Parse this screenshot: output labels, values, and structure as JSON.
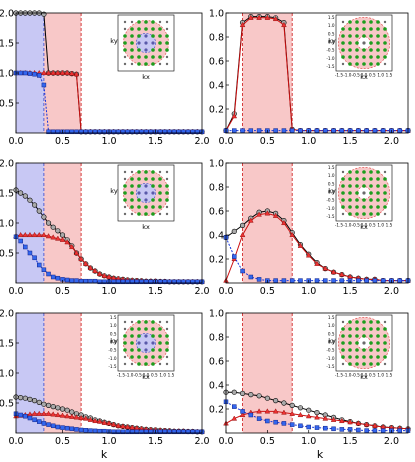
{
  "figure": {
    "xlabel_left": "k",
    "xlabel_right": "k"
  },
  "colors": {
    "blue_band": "#c8c8f4",
    "red_band": "#f8c8c8",
    "series_total": "#000000",
    "series_red": "#cc1111",
    "series_blue": "#1133dd",
    "inset_points": "#6a6a6a",
    "inset_ring_green": "#1e9e1e"
  },
  "chart_data": [
    {
      "type": "line",
      "panel": "left-top",
      "xlim": [
        0,
        2.0
      ],
      "ylim": [
        0,
        2.0
      ],
      "xticks": [
        "0.0",
        "0.5",
        "1.0",
        "1.5",
        "2.0"
      ],
      "yticks": [
        "0.5",
        "1.0",
        "1.5",
        "2.0"
      ],
      "xlabel": "",
      "ylabel": "",
      "bands": {
        "blue": [
          0,
          0.3
        ],
        "red": [
          0.3,
          0.7
        ]
      },
      "x": [
        0,
        0.05,
        0.1,
        0.15,
        0.2,
        0.25,
        0.3,
        0.35,
        0.4,
        0.45,
        0.5,
        0.55,
        0.6,
        0.65,
        0.7,
        0.75,
        0.8,
        0.85,
        0.9,
        0.95,
        1.0,
        1.05,
        1.1,
        1.15,
        1.2,
        1.25,
        1.3,
        1.35,
        1.4,
        1.45,
        1.5,
        1.55,
        1.6,
        1.65,
        1.7,
        1.75,
        1.8,
        1.85,
        1.9,
        1.95,
        2.0
      ],
      "series": [
        {
          "values": [
            2.0,
            2.0,
            2.0,
            2.0,
            2.0,
            2.0,
            1.98,
            1.0,
            1.0,
            1.0,
            1.0,
            1.0,
            0.99,
            0.98,
            0.02,
            0.02,
            0.02,
            0.02,
            0.02,
            0.02,
            0.02,
            0.02,
            0.02,
            0.02,
            0.02,
            0.02,
            0.02,
            0.02,
            0.02,
            0.02,
            0.02,
            0.02,
            0.02,
            0.02,
            0.02,
            0.02,
            0.02,
            0.02,
            0.02,
            0.02,
            0.02
          ]
        },
        {
          "values": [
            1.0,
            1.0,
            1.0,
            1.0,
            1.0,
            1.0,
            1.0,
            1.0,
            1.0,
            1.0,
            1.0,
            1.0,
            0.99,
            0.98,
            0.02,
            0.02,
            0.02,
            0.02,
            0.02,
            0.02,
            0.02,
            0.02,
            0.02,
            0.02,
            0.02,
            0.02,
            0.02,
            0.02,
            0.02,
            0.02,
            0.02,
            0.02,
            0.02,
            0.02,
            0.02,
            0.02,
            0.02,
            0.02,
            0.02,
            0.02,
            0.02
          ]
        },
        {
          "values": [
            1.0,
            1.0,
            1.0,
            0.99,
            0.98,
            0.96,
            0.8,
            0.02,
            0.02,
            0.02,
            0.02,
            0.02,
            0.02,
            0.02,
            0.02,
            0.02,
            0.02,
            0.02,
            0.02,
            0.02,
            0.02,
            0.02,
            0.02,
            0.02,
            0.02,
            0.02,
            0.02,
            0.02,
            0.02,
            0.02,
            0.02,
            0.02,
            0.02,
            0.02,
            0.02,
            0.02,
            0.02,
            0.02,
            0.02,
            0.02,
            0.02
          ]
        }
      ],
      "inset": {
        "xlabel": "kx",
        "ylabel": "ky",
        "xticks": [],
        "yticks": [],
        "colored_ticks": false,
        "rings": [
          0.3,
          0.7
        ]
      }
    },
    {
      "type": "line",
      "panel": "right-top",
      "xlim": [
        0,
        2.2
      ],
      "ylim": [
        0,
        1.0
      ],
      "xticks": [
        "0.0",
        "0.5",
        "1.0",
        "1.5",
        "2.0"
      ],
      "yticks": [
        "0.2",
        "0.4",
        "0.6",
        "0.8",
        "1.0"
      ],
      "xlabel": "",
      "ylabel": "",
      "bands": {
        "red": [
          0.2,
          0.8
        ]
      },
      "x": [
        0,
        0.1,
        0.2,
        0.3,
        0.4,
        0.5,
        0.6,
        0.7,
        0.8,
        0.9,
        1.0,
        1.1,
        1.2,
        1.3,
        1.4,
        1.5,
        1.6,
        1.7,
        1.8,
        1.9,
        2.0,
        2.1,
        2.2
      ],
      "series": [
        {
          "values": [
            0.02,
            0.16,
            0.92,
            0.97,
            0.97,
            0.97,
            0.96,
            0.92,
            0.03,
            0.02,
            0.02,
            0.02,
            0.02,
            0.02,
            0.02,
            0.02,
            0.02,
            0.02,
            0.02,
            0.02,
            0.02,
            0.02,
            0.02
          ]
        },
        {
          "values": [
            0.02,
            0.14,
            0.9,
            0.96,
            0.96,
            0.96,
            0.95,
            0.9,
            0.03,
            0.02,
            0.02,
            0.02,
            0.02,
            0.02,
            0.02,
            0.02,
            0.02,
            0.02,
            0.02,
            0.02,
            0.02,
            0.02,
            0.02
          ]
        },
        {
          "values": [
            0.02,
            0.02,
            0.02,
            0.02,
            0.02,
            0.02,
            0.02,
            0.02,
            0.02,
            0.02,
            0.02,
            0.02,
            0.02,
            0.02,
            0.02,
            0.02,
            0.02,
            0.02,
            0.02,
            0.02,
            0.02,
            0.02,
            0.02
          ]
        }
      ],
      "inset": {
        "xlabel": "kx",
        "ylabel": "ky",
        "xticks": [
          "-1.5",
          "-1.0",
          "-0.5",
          "0.0",
          "0.5",
          "1.0",
          "1.5"
        ],
        "yticks": [
          "1.5",
          "1.0",
          "0.5",
          "0.0",
          "-0.5",
          "-1.0",
          "-1.5"
        ],
        "colored_ticks": false,
        "rings": [
          0.2,
          0.8
        ]
      }
    },
    {
      "type": "line",
      "panel": "left-middle",
      "xlim": [
        0,
        2.0
      ],
      "ylim": [
        0,
        2.0
      ],
      "xticks": [
        "0.0",
        "0.5",
        "1.0",
        "1.5",
        "2.0"
      ],
      "yticks": [
        "0.5",
        "1.0",
        "1.5",
        "2.0"
      ],
      "xlabel": "",
      "ylabel": "",
      "bands": {
        "blue": [
          0,
          0.3
        ],
        "red": [
          0.3,
          0.7
        ]
      },
      "x": [
        0,
        0.05,
        0.1,
        0.15,
        0.2,
        0.25,
        0.3,
        0.35,
        0.4,
        0.45,
        0.5,
        0.55,
        0.6,
        0.65,
        0.7,
        0.75,
        0.8,
        0.85,
        0.9,
        0.95,
        1.0,
        1.05,
        1.1,
        1.15,
        1.2,
        1.25,
        1.3,
        1.35,
        1.4,
        1.45,
        1.5,
        1.55,
        1.6,
        1.65,
        1.7,
        1.75,
        1.8,
        1.85,
        1.9,
        1.95,
        2.0
      ],
      "series": [
        {
          "values": [
            1.55,
            1.5,
            1.45,
            1.38,
            1.3,
            1.2,
            1.1,
            1.0,
            0.93,
            0.87,
            0.8,
            0.72,
            0.62,
            0.5,
            0.4,
            0.32,
            0.25,
            0.2,
            0.15,
            0.12,
            0.1,
            0.08,
            0.07,
            0.06,
            0.05,
            0.045,
            0.04,
            0.035,
            0.03,
            0.03,
            0.03,
            0.025,
            0.025,
            0.02,
            0.02,
            0.02,
            0.02,
            0.02,
            0.02,
            0.02,
            0.02
          ]
        },
        {
          "values": [
            0.78,
            0.8,
            0.8,
            0.8,
            0.8,
            0.8,
            0.8,
            0.78,
            0.76,
            0.74,
            0.72,
            0.68,
            0.6,
            0.5,
            0.4,
            0.32,
            0.25,
            0.2,
            0.15,
            0.12,
            0.1,
            0.08,
            0.07,
            0.06,
            0.05,
            0.045,
            0.04,
            0.035,
            0.03,
            0.03,
            0.03,
            0.025,
            0.025,
            0.02,
            0.02,
            0.02,
            0.02,
            0.02,
            0.02,
            0.02,
            0.02
          ]
        },
        {
          "values": [
            0.77,
            0.7,
            0.6,
            0.5,
            0.42,
            0.3,
            0.22,
            0.15,
            0.1,
            0.08,
            0.06,
            0.05,
            0.04,
            0.04,
            0.03,
            0.03,
            0.03,
            0.03,
            0.02,
            0.02,
            0.02,
            0.02,
            0.02,
            0.02,
            0.02,
            0.02,
            0.02,
            0.02,
            0.02,
            0.02,
            0.02,
            0.02,
            0.02,
            0.02,
            0.02,
            0.02,
            0.02,
            0.02,
            0.02,
            0.02,
            0.02
          ]
        }
      ],
      "inset": {
        "xlabel": "kx",
        "ylabel": "ky",
        "xticks": [],
        "yticks": [],
        "colored_ticks": false,
        "rings": [
          0.3,
          0.7
        ]
      }
    },
    {
      "type": "line",
      "panel": "right-middle",
      "xlim": [
        0,
        2.2
      ],
      "ylim": [
        0,
        1.0
      ],
      "xticks": [
        "0.0",
        "0.5",
        "1.0",
        "1.5",
        "2.0"
      ],
      "yticks": [
        "0.2",
        "0.4",
        "0.6",
        "0.8",
        "1.0"
      ],
      "xlabel": "",
      "ylabel": "",
      "bands": {
        "red": [
          0.2,
          0.8
        ]
      },
      "x": [
        0,
        0.1,
        0.2,
        0.3,
        0.4,
        0.5,
        0.6,
        0.7,
        0.8,
        0.9,
        1.0,
        1.1,
        1.2,
        1.3,
        1.4,
        1.5,
        1.6,
        1.7,
        1.8,
        1.9,
        2.0,
        2.1,
        2.2
      ],
      "series": [
        {
          "values": [
            0.38,
            0.43,
            0.48,
            0.54,
            0.59,
            0.6,
            0.58,
            0.52,
            0.42,
            0.32,
            0.24,
            0.17,
            0.12,
            0.09,
            0.07,
            0.05,
            0.04,
            0.03,
            0.03,
            0.02,
            0.02,
            0.02,
            0.02
          ]
        },
        {
          "values": [
            0.02,
            0.2,
            0.4,
            0.52,
            0.57,
            0.58,
            0.56,
            0.5,
            0.4,
            0.31,
            0.23,
            0.16,
            0.12,
            0.09,
            0.07,
            0.05,
            0.04,
            0.03,
            0.03,
            0.02,
            0.02,
            0.02,
            0.02
          ]
        },
        {
          "values": [
            0.38,
            0.22,
            0.1,
            0.05,
            0.03,
            0.02,
            0.02,
            0.02,
            0.02,
            0.02,
            0.02,
            0.02,
            0.02,
            0.02,
            0.02,
            0.02,
            0.02,
            0.02,
            0.02,
            0.02,
            0.02,
            0.02,
            0.02
          ]
        }
      ],
      "inset": {
        "xlabel": "kx",
        "ylabel": "ky",
        "xticks": [
          "-1.5",
          "-1.0",
          "-0.5",
          "0.0",
          "0.5",
          "1.0",
          "1.5"
        ],
        "yticks": [
          "1.5",
          "1.0",
          "0.5",
          "0.0",
          "-0.5",
          "-1.0",
          "-1.5"
        ],
        "colored_ticks": false,
        "rings": [
          0.2,
          0.8
        ]
      }
    },
    {
      "type": "line",
      "panel": "left-bottom",
      "xlim": [
        0,
        2.0
      ],
      "ylim": [
        0,
        2.0
      ],
      "xticks": [
        "0.0",
        "0.5",
        "1.0",
        "1.5",
        "2.0"
      ],
      "yticks": [
        "0.5",
        "1.0",
        "1.5",
        "2.0"
      ],
      "xlabel": "k",
      "ylabel": "",
      "bands": {
        "blue": [
          0,
          0.3
        ],
        "red": [
          0.3,
          0.7
        ]
      },
      "x": [
        0,
        0.05,
        0.1,
        0.15,
        0.2,
        0.25,
        0.3,
        0.35,
        0.4,
        0.45,
        0.5,
        0.55,
        0.6,
        0.65,
        0.7,
        0.75,
        0.8,
        0.85,
        0.9,
        0.95,
        1.0,
        1.05,
        1.1,
        1.15,
        1.2,
        1.25,
        1.3,
        1.35,
        1.4,
        1.45,
        1.5,
        1.55,
        1.6,
        1.65,
        1.7,
        1.75,
        1.8,
        1.85,
        1.9,
        1.95,
        2.0
      ],
      "series": [
        {
          "values": [
            0.6,
            0.59,
            0.58,
            0.56,
            0.54,
            0.51,
            0.48,
            0.46,
            0.44,
            0.42,
            0.4,
            0.38,
            0.35,
            0.32,
            0.3,
            0.27,
            0.25,
            0.22,
            0.2,
            0.18,
            0.16,
            0.14,
            0.12,
            0.11,
            0.1,
            0.09,
            0.08,
            0.07,
            0.06,
            0.055,
            0.05,
            0.045,
            0.04,
            0.035,
            0.03,
            0.03,
            0.03,
            0.025,
            0.025,
            0.02,
            0.02
          ]
        },
        {
          "values": [
            0.28,
            0.29,
            0.3,
            0.31,
            0.32,
            0.32,
            0.32,
            0.32,
            0.31,
            0.3,
            0.29,
            0.28,
            0.27,
            0.26,
            0.25,
            0.24,
            0.22,
            0.2,
            0.19,
            0.17,
            0.16,
            0.14,
            0.12,
            0.11,
            0.1,
            0.09,
            0.08,
            0.07,
            0.06,
            0.055,
            0.05,
            0.045,
            0.04,
            0.035,
            0.03,
            0.03,
            0.03,
            0.025,
            0.025,
            0.02,
            0.02
          ]
        },
        {
          "values": [
            0.32,
            0.3,
            0.28,
            0.25,
            0.22,
            0.19,
            0.16,
            0.14,
            0.12,
            0.1,
            0.09,
            0.08,
            0.07,
            0.06,
            0.05,
            0.045,
            0.04,
            0.035,
            0.03,
            0.03,
            0.025,
            0.02,
            0.02,
            0.02,
            0.02,
            0.02,
            0.02,
            0.02,
            0.02,
            0.02,
            0.02,
            0.02,
            0.02,
            0.02,
            0.02,
            0.02,
            0.02,
            0.02,
            0.02,
            0.02,
            0.02
          ]
        }
      ],
      "inset": {
        "xlabel": "kx",
        "ylabel": "ky",
        "xticks": [
          "-1.5",
          "-1.0",
          "-0.5",
          "0.0",
          "0.5",
          "1.0",
          "1.5"
        ],
        "yticks": [
          "1.5",
          "1.0",
          "0.5",
          "0.0",
          "-0.5",
          "-1.0",
          "-1.5"
        ],
        "colored_ticks": false,
        "rings": [
          0.3,
          0.7
        ]
      }
    },
    {
      "type": "line",
      "panel": "right-bottom",
      "xlim": [
        0,
        2.2
      ],
      "ylim": [
        0,
        1.0
      ],
      "xticks": [
        "0.0",
        "0.5",
        "1.0",
        "1.5",
        "2.0"
      ],
      "yticks": [
        "0.2",
        "0.4",
        "0.6",
        "0.8",
        "1.0"
      ],
      "xlabel": "k",
      "ylabel": "",
      "bands": {
        "red": [
          0.2,
          0.8
        ]
      },
      "x": [
        0,
        0.1,
        0.2,
        0.3,
        0.4,
        0.5,
        0.6,
        0.7,
        0.8,
        0.9,
        1.0,
        1.1,
        1.2,
        1.3,
        1.4,
        1.5,
        1.6,
        1.7,
        1.8,
        1.9,
        2.0,
        2.1,
        2.2
      ],
      "series": [
        {
          "values": [
            0.34,
            0.34,
            0.33,
            0.32,
            0.31,
            0.29,
            0.27,
            0.25,
            0.23,
            0.21,
            0.19,
            0.17,
            0.15,
            0.13,
            0.11,
            0.095,
            0.08,
            0.07,
            0.06,
            0.05,
            0.045,
            0.04,
            0.035
          ]
        },
        {
          "values": [
            0.08,
            0.12,
            0.15,
            0.17,
            0.18,
            0.18,
            0.18,
            0.17,
            0.16,
            0.15,
            0.14,
            0.13,
            0.12,
            0.11,
            0.1,
            0.09,
            0.08,
            0.07,
            0.06,
            0.05,
            0.045,
            0.04,
            0.035
          ]
        },
        {
          "values": [
            0.26,
            0.22,
            0.18,
            0.15,
            0.12,
            0.1,
            0.09,
            0.08,
            0.07,
            0.06,
            0.05,
            0.045,
            0.04,
            0.035,
            0.03,
            0.03,
            0.025,
            0.02,
            0.02,
            0.02,
            0.02,
            0.02,
            0.02
          ]
        }
      ],
      "inset": {
        "xlabel": "kx",
        "ylabel": "ky",
        "xticks": [
          "-1.5",
          "-1.0",
          "-0.5",
          "0.0",
          "0.5",
          "1.0",
          "1.5"
        ],
        "yticks": [
          "1.5",
          "1.0",
          "0.5",
          "0.0",
          "-0.5",
          "-1.0",
          "-1.5"
        ],
        "colored_ticks": false,
        "rings": [
          0.2,
          0.8
        ]
      }
    }
  ]
}
